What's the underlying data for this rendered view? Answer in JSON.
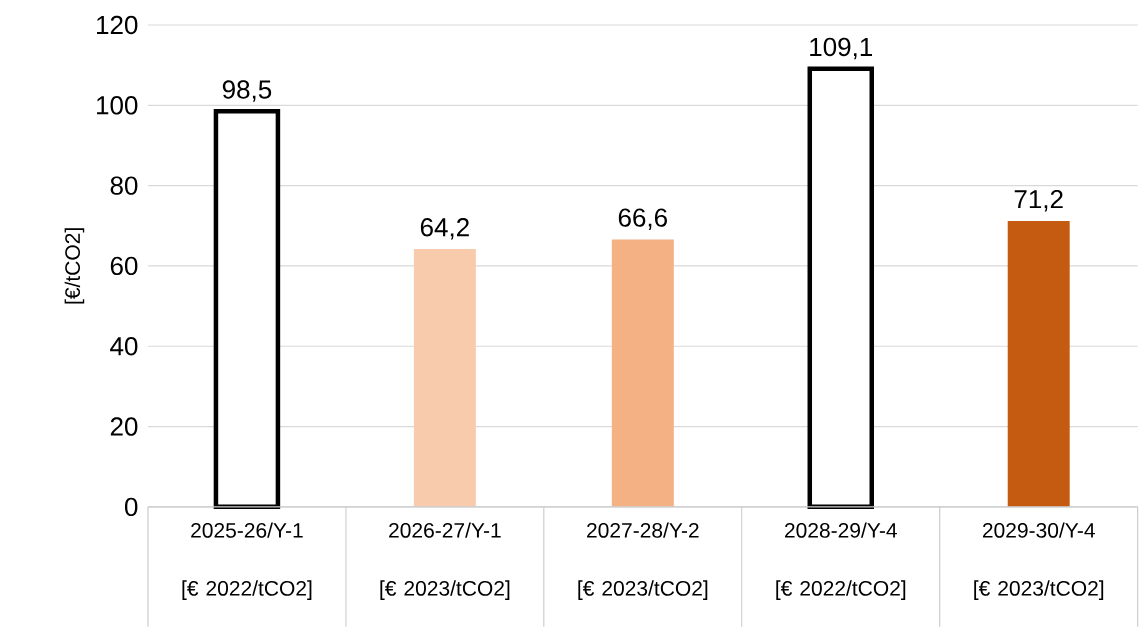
{
  "chart_data": {
    "type": "bar",
    "ylabel": "[€/tCO2]",
    "categories": [
      "2025-26/Y-1 [€ 2022/tCO2]",
      "2026-27/Y-1 [€ 2023/tCO2]",
      "2027-28/Y-2 [€ 2023/tCO2]",
      "2028-29/Y-4 [€ 2022/tCO2]",
      "2029-30/Y-4 [€ 2023/tCO2]"
    ],
    "values": [
      98.5,
      64.2,
      66.6,
      109.1,
      71.2
    ],
    "colors": [
      "#ffffff",
      "#f8cbad",
      "#f4b183",
      "#ffffff",
      "#c55a11"
    ],
    "value_labels": [
      "98,5",
      "64,2",
      "66,6",
      "109,1",
      "71,2"
    ],
    "ylim": [
      0,
      120
    ],
    "yticks": [
      0,
      20,
      40,
      60,
      80,
      100,
      120
    ],
    "grid": "y"
  }
}
